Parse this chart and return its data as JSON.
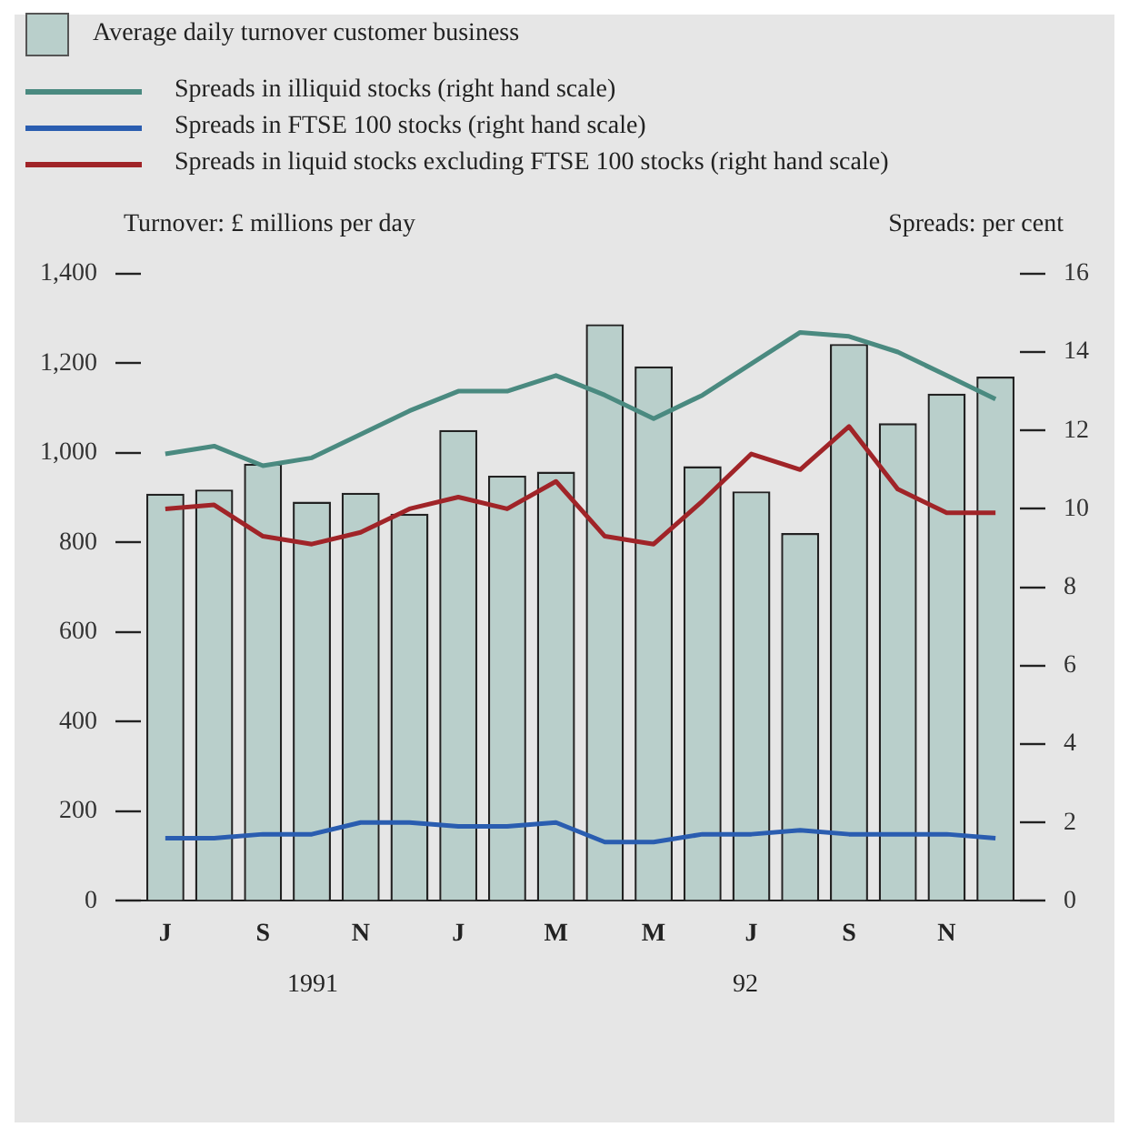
{
  "chart_data": {
    "type": "bar",
    "ylabel": "Turnover: £ millions per day",
    "y2label": "Spreads: per cent",
    "categories": [
      "J",
      null,
      "S",
      null,
      "N",
      null,
      "J",
      null,
      "M",
      null,
      "M",
      null,
      "J",
      null,
      "S",
      null,
      "N",
      null
    ],
    "series": [
      {
        "name": "Average daily turnover customer business",
        "color": "#b9cfcb",
        "values": [
          909,
          918,
          976,
          891,
          911,
          864,
          1051,
          949,
          958,
          1287,
          1193,
          970,
          914,
          821,
          1243,
          1066,
          1132,
          1170
        ]
      },
      {
        "name": "Spreads in illiquid stocks (right hand scale)",
        "type": "line",
        "axis": "y2",
        "color": "#4a8a80",
        "values": [
          11.4,
          11.6,
          11.1,
          11.3,
          11.9,
          12.5,
          13.0,
          13.0,
          13.4,
          12.9,
          12.3,
          12.9,
          13.7,
          14.5,
          14.4,
          14.0,
          13.4,
          12.8
        ]
      },
      {
        "name": "Spreads in FTSE 100 stocks (right hand scale)",
        "type": "line",
        "axis": "y2",
        "color": "#2a5db0",
        "values": [
          1.6,
          1.6,
          1.7,
          1.7,
          2.0,
          2.0,
          1.9,
          1.9,
          2.0,
          1.5,
          1.5,
          1.7,
          1.7,
          1.8,
          1.7,
          1.7,
          1.7,
          1.6
        ]
      },
      {
        "name": "Spreads in liquid stocks excluding FTSE 100 stocks (right hand scale)",
        "type": "line",
        "axis": "y2",
        "color": "#a02428",
        "values": [
          10.0,
          10.1,
          9.3,
          9.1,
          9.4,
          10.0,
          10.3,
          10.0,
          10.7,
          9.3,
          9.1,
          10.2,
          11.4,
          11.0,
          12.1,
          10.5,
          9.9,
          9.9
        ]
      }
    ],
    "ylim": [
      0,
      1400
    ],
    "yticks": [
      0,
      200,
      400,
      600,
      800,
      {
        "value": 1000,
        "label": "1,000"
      },
      {
        "value": 1200,
        "label": "1,200"
      },
      {
        "value": 1400,
        "label": "1,400"
      }
    ],
    "y2lim": [
      0,
      16
    ],
    "y2ticks": [
      0,
      2,
      4,
      6,
      8,
      10,
      12,
      14,
      16
    ],
    "grid": false,
    "legend": "top left",
    "marker": "none",
    "line_style": "solid",
    "annotations": [
      "1991",
      "92"
    ]
  }
}
